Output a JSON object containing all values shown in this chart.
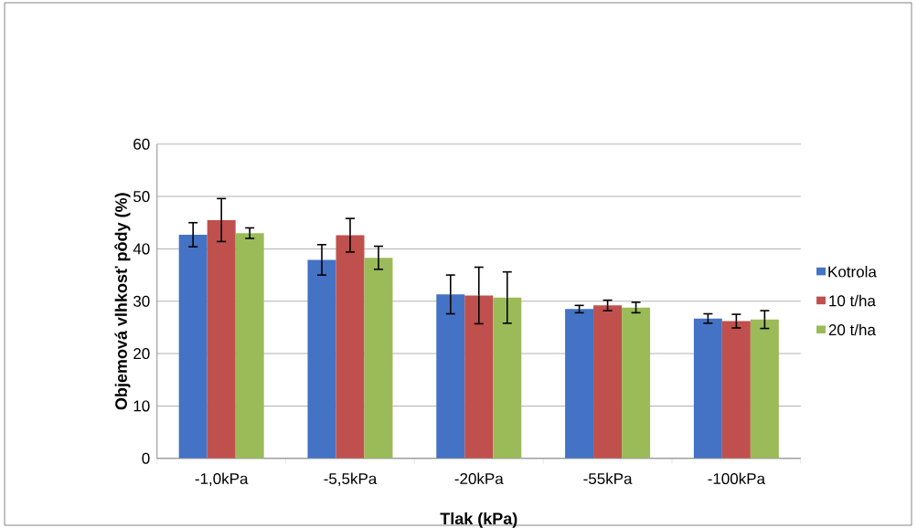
{
  "chart_data": {
    "type": "bar",
    "xlabel": "Tlak (kPa)",
    "ylabel": "Objemová vlhkosť pôdy  (%)",
    "categories": [
      "-1,0kPa",
      "-5,5kPa",
      "-20kPa",
      "-55kPa",
      "-100kPa"
    ],
    "series": [
      {
        "name": "Kotrola",
        "color": "#4472c4",
        "values": [
          42.7,
          37.9,
          31.3,
          28.5,
          26.7
        ],
        "errors": [
          2.3,
          2.9,
          3.7,
          0.7,
          0.9
        ]
      },
      {
        "name": "10 t/ha",
        "color": "#c0504d",
        "values": [
          45.5,
          42.6,
          31.1,
          29.2,
          26.2
        ],
        "errors": [
          4.1,
          3.2,
          5.4,
          1.0,
          1.3
        ]
      },
      {
        "name": "20 t/ha",
        "color": "#9bbb59",
        "values": [
          43.0,
          38.3,
          30.7,
          28.8,
          26.5
        ],
        "errors": [
          1.0,
          2.2,
          4.9,
          1.0,
          1.7
        ]
      }
    ],
    "ylim": [
      0,
      60
    ],
    "yticks": [
      0,
      10,
      20,
      30,
      40,
      50,
      60
    ],
    "grid": "y",
    "legend": "right"
  }
}
